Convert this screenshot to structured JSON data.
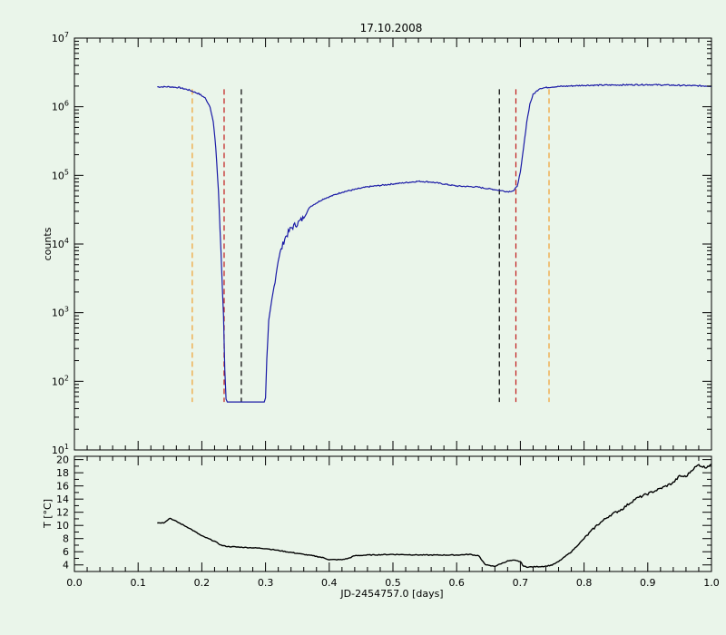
{
  "chart_data": [
    {
      "type": "line",
      "title": "17.10.2008",
      "ylabel": "counts",
      "yscale": "log",
      "xlim": [
        0.0,
        1.0
      ],
      "ylim": [
        10,
        10000000
      ],
      "y_ticks": [
        {
          "base": "10",
          "exp": "1"
        },
        {
          "base": "10",
          "exp": "2"
        },
        {
          "base": "10",
          "exp": "3"
        },
        {
          "base": "10",
          "exp": "4"
        },
        {
          "base": "10",
          "exp": "5"
        },
        {
          "base": "10",
          "exp": "6"
        },
        {
          "base": "10",
          "exp": "7"
        }
      ],
      "series": [
        {
          "color": "#1a1aa6",
          "x": [
            0.13,
            0.15,
            0.165,
            0.18,
            0.195,
            0.205,
            0.213,
            0.218,
            0.222,
            0.226,
            0.23,
            0.234,
            0.236,
            0.238,
            0.24,
            0.243,
            0.26,
            0.28,
            0.298,
            0.3,
            0.302,
            0.305,
            0.31,
            0.315,
            0.32,
            0.33,
            0.34,
            0.35,
            0.36,
            0.37,
            0.39,
            0.42,
            0.46,
            0.5,
            0.54,
            0.56,
            0.6,
            0.63,
            0.66,
            0.68,
            0.69,
            0.695,
            0.7,
            0.705,
            0.71,
            0.715,
            0.72,
            0.73,
            0.75,
            0.8,
            0.9,
            1.0
          ],
          "y": [
            1950000,
            1950000,
            1900000,
            1750000,
            1550000,
            1350000,
            1000000,
            600000,
            250000,
            60000,
            8000,
            900,
            150,
            55,
            50,
            50,
            50,
            50,
            50,
            60,
            200,
            700,
            1500,
            3000,
            6000,
            12000,
            17000,
            20000,
            24000,
            35000,
            45000,
            57000,
            68000,
            75000,
            82000,
            80000,
            70000,
            68000,
            62000,
            58000,
            60000,
            70000,
            110000,
            250000,
            600000,
            1100000,
            1500000,
            1850000,
            1950000,
            2050000,
            2100000,
            2000000
          ]
        }
      ],
      "markers": [
        {
          "x": 0.185,
          "color": "#f0a030"
        },
        {
          "x": 0.235,
          "color": "#c01818"
        },
        {
          "x": 0.262,
          "color": "#000000"
        },
        {
          "x": 0.667,
          "color": "#000000"
        },
        {
          "x": 0.693,
          "color": "#c01818"
        },
        {
          "x": 0.745,
          "color": "#f0a030"
        }
      ],
      "marker_range": [
        50,
        1800000
      ]
    },
    {
      "type": "line",
      "xlabel": "JD-2454757.0 [days]",
      "ylabel": "T [°C]",
      "xlim": [
        0.0,
        1.0
      ],
      "ylim": [
        3,
        20.5
      ],
      "y_ticks": [
        "4",
        "6",
        "8",
        "10",
        "12",
        "14",
        "16",
        "18",
        "20"
      ],
      "x_ticks": [
        "0.0",
        "0.1",
        "0.2",
        "0.3",
        "0.4",
        "0.5",
        "0.6",
        "0.7",
        "0.8",
        "0.9",
        "1.0"
      ],
      "series": [
        {
          "color": "#000000",
          "x": [
            0.13,
            0.14,
            0.15,
            0.16,
            0.18,
            0.2,
            0.21,
            0.22,
            0.23,
            0.24,
            0.26,
            0.28,
            0.3,
            0.32,
            0.34,
            0.36,
            0.38,
            0.39,
            0.4,
            0.42,
            0.43,
            0.44,
            0.46,
            0.5,
            0.55,
            0.6,
            0.62,
            0.635,
            0.64,
            0.645,
            0.65,
            0.66,
            0.67,
            0.68,
            0.69,
            0.7,
            0.705,
            0.71,
            0.72,
            0.74,
            0.75,
            0.76,
            0.78,
            0.8,
            0.82,
            0.84,
            0.86,
            0.88,
            0.9,
            0.92,
            0.94,
            0.95,
            0.96,
            0.97,
            0.98,
            0.99,
            1.0
          ],
          "y": [
            10.4,
            10.4,
            11.1,
            10.6,
            9.6,
            8.4,
            8.0,
            7.6,
            7.0,
            6.8,
            6.7,
            6.6,
            6.5,
            6.2,
            5.9,
            5.6,
            5.3,
            5.1,
            4.8,
            4.8,
            5.0,
            5.4,
            5.5,
            5.6,
            5.5,
            5.5,
            5.6,
            5.4,
            4.6,
            4.1,
            3.9,
            3.8,
            4.2,
            4.6,
            4.7,
            4.5,
            3.8,
            3.7,
            3.7,
            3.8,
            4.0,
            4.5,
            6.0,
            8.0,
            10.0,
            11.5,
            12.5,
            14.0,
            14.8,
            15.6,
            16.5,
            17.5,
            17.4,
            18.5,
            19.2,
            18.8,
            19.3
          ]
        }
      ]
    }
  ]
}
